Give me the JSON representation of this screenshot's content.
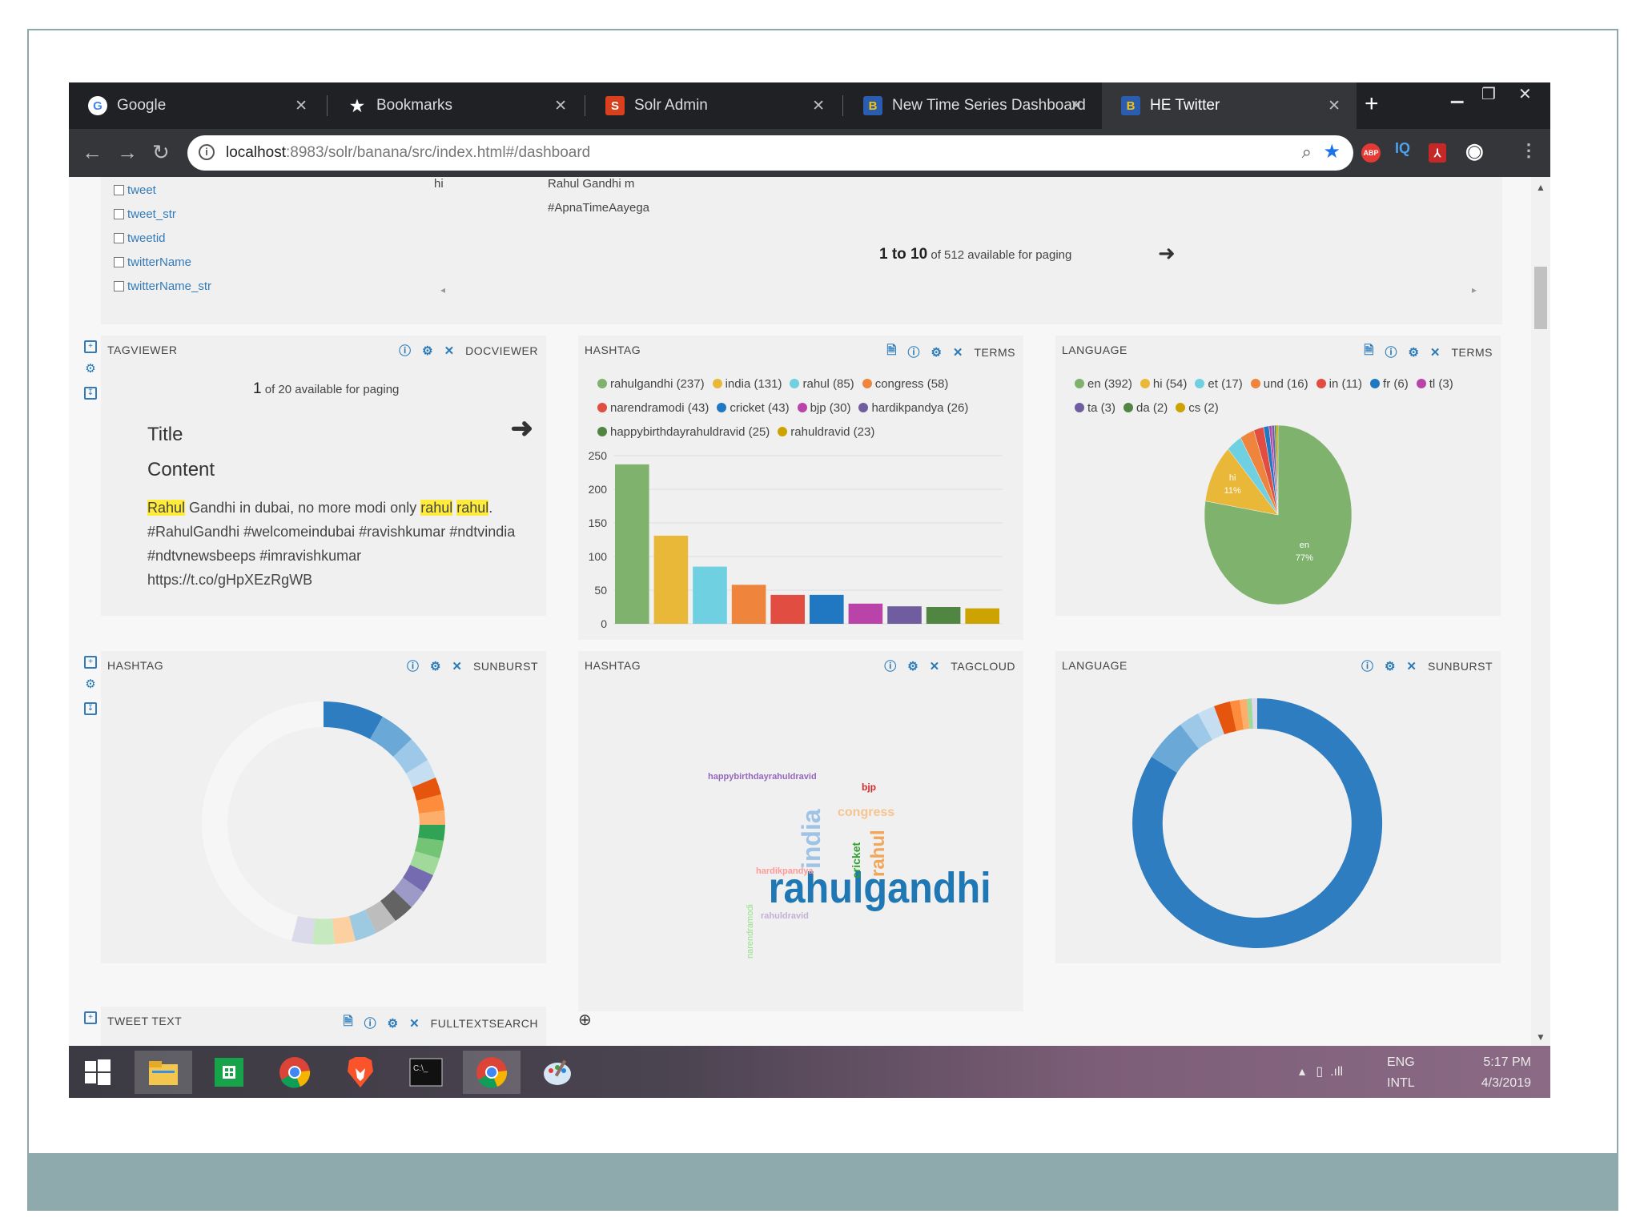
{
  "tabs": [
    {
      "label": "Google",
      "icon": "google-icon"
    },
    {
      "label": "Bookmarks",
      "icon": "star-icon"
    },
    {
      "label": "Solr Admin",
      "icon": "solr-icon"
    },
    {
      "label": "New Time Series Dashboard",
      "icon": "banana-icon"
    },
    {
      "label": "HE Twitter",
      "icon": "banana-icon"
    }
  ],
  "address": {
    "host": "localhost",
    "path": ":8983/solr/banana/src/index.html#/dashboard"
  },
  "field_list": [
    "tweet",
    "tweet_str",
    "tweetid",
    "twitterName",
    "twitterName_str"
  ],
  "table_cells": {
    "lang": "hi",
    "text_line1": "Rahul Gandhi m",
    "text_line2": "#ApnaTimeAayega"
  },
  "table_paging": {
    "range": "1 to 10",
    "rest": "of 512 available for paging"
  },
  "docviewer": {
    "title": "TAGVIEWER",
    "mode": "DOCVIEWER",
    "paging_num": "1",
    "paging_rest": "of 20 available for paging",
    "heading_title": "Title",
    "heading_content": "Content",
    "text_pre1": "Rahul",
    "text_mid": " Gandhi in dubai, no more modi only ",
    "text_hl2": "rahul",
    "text_hl3": "rahul",
    "text_post": ". #RahulGandhi #welcomeindubai #ravishkumar #ndtvindia #ndtvnewsbeeps #imravishkumar https://t.co/gHpXEzRgWB"
  },
  "hashtag_terms": {
    "title": "HASHTAG",
    "mode": "TERMS"
  },
  "language_terms": {
    "title": "LANGUAGE",
    "mode": "TERMS"
  },
  "hashtag_sunburst": {
    "title": "HASHTAG",
    "mode": "SUNBURST"
  },
  "hashtag_tagcloud": {
    "title": "HASHTAG",
    "mode": "TAGCLOUD"
  },
  "language_sunburst": {
    "title": "LANGUAGE",
    "mode": "SUNBURST"
  },
  "tweet_text": {
    "title": "TWEET TEXT",
    "mode": "FULLTEXTSEARCH"
  },
  "chart_data": [
    {
      "type": "bar",
      "categories": [
        "rahulgandhi",
        "india",
        "rahul",
        "congress",
        "narendramodi",
        "cricket",
        "bjp",
        "hardikpandya",
        "happybirthdayrahuldravid",
        "rahuldravid"
      ],
      "values": [
        237,
        131,
        85,
        58,
        43,
        43,
        30,
        26,
        25,
        23
      ],
      "legend_labels": [
        "rahulgandhi (237)",
        "india (131)",
        "rahul (85)",
        "congress (58)",
        "narendramodi (43)",
        "cricket (43)",
        "bjp (30)",
        "hardikpandya (26)",
        "happybirthdayrahuldravid (25)",
        "rahuldravid (23)"
      ],
      "colors": [
        "#7eb26d",
        "#eab839",
        "#6ed0e0",
        "#ef843c",
        "#e24d42",
        "#1f78c1",
        "#ba43a9",
        "#705da0",
        "#508642",
        "#cca300"
      ],
      "yticks": [
        "0",
        "50",
        "100",
        "150",
        "200",
        "250"
      ],
      "ylim": [
        0,
        250
      ]
    },
    {
      "type": "pie",
      "categories": [
        "en",
        "hi",
        "et",
        "und",
        "in",
        "fr",
        "tl",
        "ta",
        "da",
        "cs"
      ],
      "values": [
        392,
        54,
        17,
        16,
        11,
        6,
        3,
        3,
        2,
        2
      ],
      "legend_labels": [
        "en (392)",
        "hi (54)",
        "et (17)",
        "und (16)",
        "in (11)",
        "fr (6)",
        "tl (3)",
        "ta (3)",
        "da (2)",
        "cs (2)"
      ],
      "colors": [
        "#7eb26d",
        "#eab839",
        "#6ed0e0",
        "#ef843c",
        "#e24d42",
        "#1f78c1",
        "#ba43a9",
        "#705da0",
        "#508642",
        "#cca300"
      ],
      "slice_labels": [
        {
          "name": "en",
          "pct": "77%"
        },
        {
          "name": "hi",
          "pct": "11%"
        }
      ]
    }
  ],
  "tagcloud": [
    {
      "text": "rahulgandhi",
      "color": "#1f77b4"
    },
    {
      "text": "india",
      "color": "#9ec3e6"
    },
    {
      "text": "rahul",
      "color": "#f0a75a"
    },
    {
      "text": "congress",
      "color": "#f6c48e"
    },
    {
      "text": "cricket",
      "color": "#2ca02c"
    },
    {
      "text": "bjp",
      "color": "#d62728"
    },
    {
      "text": "happybirthdayrahuldravid",
      "color": "#9467bd"
    },
    {
      "text": "hardikpandya",
      "color": "#ff9896"
    },
    {
      "text": "narendramodi",
      "color": "#98df8a"
    },
    {
      "text": "rahuldravid",
      "color": "#c5b0d5"
    }
  ],
  "tray": {
    "lang1": "ENG",
    "lang2": "INTL",
    "time": "5:17 PM",
    "date": "4/3/2019"
  },
  "accent": "#2b7bb9"
}
